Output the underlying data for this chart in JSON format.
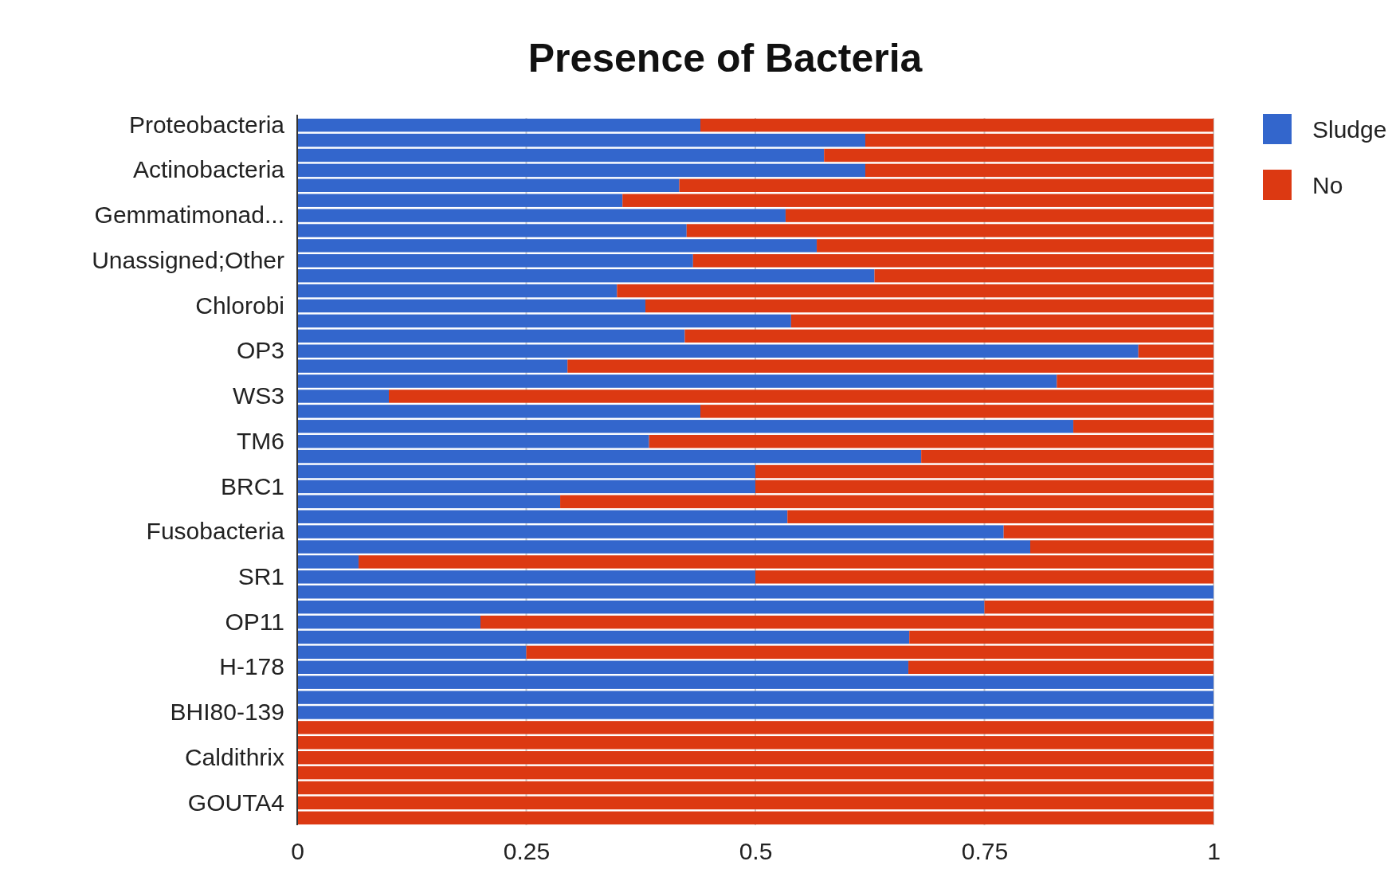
{
  "chart_data": {
    "type": "bar",
    "title": "Presence of Bacteria",
    "orientation": "horizontal",
    "stacked": true,
    "categories": [
      "Proteobacteria",
      null,
      null,
      "Actinobacteria",
      null,
      null,
      "Gemmatimonad...",
      null,
      null,
      "Unassigned;Other",
      null,
      null,
      "Chlorobi",
      null,
      null,
      "OP3",
      null,
      null,
      "WS3",
      null,
      null,
      "TM6",
      null,
      null,
      "BRC1",
      null,
      null,
      "Fusobacteria",
      null,
      null,
      "SR1",
      null,
      null,
      "OP11",
      null,
      null,
      "H-178",
      null,
      null,
      "BHI80-139",
      null,
      null,
      "Caldithrix",
      null,
      null,
      "GOUTA4",
      null
    ],
    "series": [
      {
        "name": "Sludge",
        "color": "#3366cc",
        "values": [
          0.44,
          0.62,
          0.575,
          0.62,
          0.417,
          0.355,
          0.533,
          0.425,
          0.567,
          0.432,
          0.63,
          0.349,
          0.38,
          0.539,
          0.423,
          0.918,
          0.295,
          0.829,
          0.1,
          0.44,
          0.847,
          0.384,
          0.681,
          0.5,
          0.5,
          0.287,
          0.535,
          0.771,
          0.8,
          0.067,
          0.5,
          1,
          0.75,
          0.2,
          0.668,
          0.25,
          0.667,
          1,
          1,
          1,
          0,
          0,
          0,
          0,
          0,
          0,
          0
        ]
      },
      {
        "name": "No",
        "color": "#dc3912",
        "values": [
          0.56,
          0.38,
          0.425,
          0.38,
          0.583,
          0.645,
          0.467,
          0.575,
          0.433,
          0.568,
          0.37,
          0.651,
          0.62,
          0.461,
          0.577,
          0.082,
          0.705,
          0.171,
          0.9,
          0.56,
          0.153,
          0.616,
          0.319,
          0.5,
          0.5,
          0.713,
          0.465,
          0.229,
          0.2,
          0.933,
          0.5,
          0,
          0.25,
          0.8,
          0.332,
          0.75,
          0.333,
          0,
          0,
          0,
          1,
          1,
          1,
          1,
          1,
          1,
          1
        ]
      }
    ],
    "xlim": [
      0,
      1
    ],
    "xticks": [
      0,
      0.25,
      0.5,
      0.75,
      1
    ],
    "grid": "x",
    "legend": "top right"
  }
}
